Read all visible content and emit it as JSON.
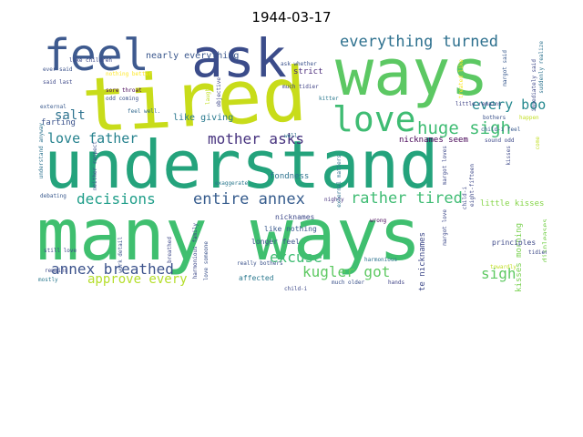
{
  "title": "1944-03-17",
  "words": [
    "many ways",
    "understand",
    "tired",
    "ways",
    "ask",
    "feel",
    "love",
    "everything turned",
    "huge sigh",
    "every book",
    "mother asks",
    "love father",
    "decisions",
    "entire annex",
    "rather tired",
    "annex breathed",
    "excuse",
    "kugler got",
    "approve every",
    "sigh",
    "salt",
    "like giving",
    "nearly everything",
    "strict",
    "much tidier",
    "kitter",
    "ask whether",
    "nicknames seem",
    "fondness",
    "farting",
    "cute nicknames",
    "kisses morning",
    "little kisses",
    "longer feel",
    "like nothing",
    "nicknames",
    "affected",
    "sore throat",
    "odd coming",
    "said last",
    "ever said",
    "like children",
    "nothing better",
    "external",
    "feel well.",
    "still love",
    "mostly",
    "debating",
    "understand anyway",
    "really bothers",
    "much older",
    "hands",
    "harmonious",
    "principles",
    "displeases",
    "tidier",
    "towardly",
    "wrong",
    "exaggerate",
    "harmonious family",
    "bothers",
    "happen",
    "suddenly realize",
    "immediately said",
    "margot said",
    "treated like",
    "little remains",
    "sound odd",
    "child-i feel",
    "nighty",
    "well.",
    "child-i",
    "neither respect",
    "work detail",
    "love someone",
    "breathed",
    "remains",
    "objective",
    "laugh",
    "external matters",
    "margot loves",
    "margot love",
    "eight-fifteen",
    "come",
    "kisses",
    "child-i"
  ]
}
